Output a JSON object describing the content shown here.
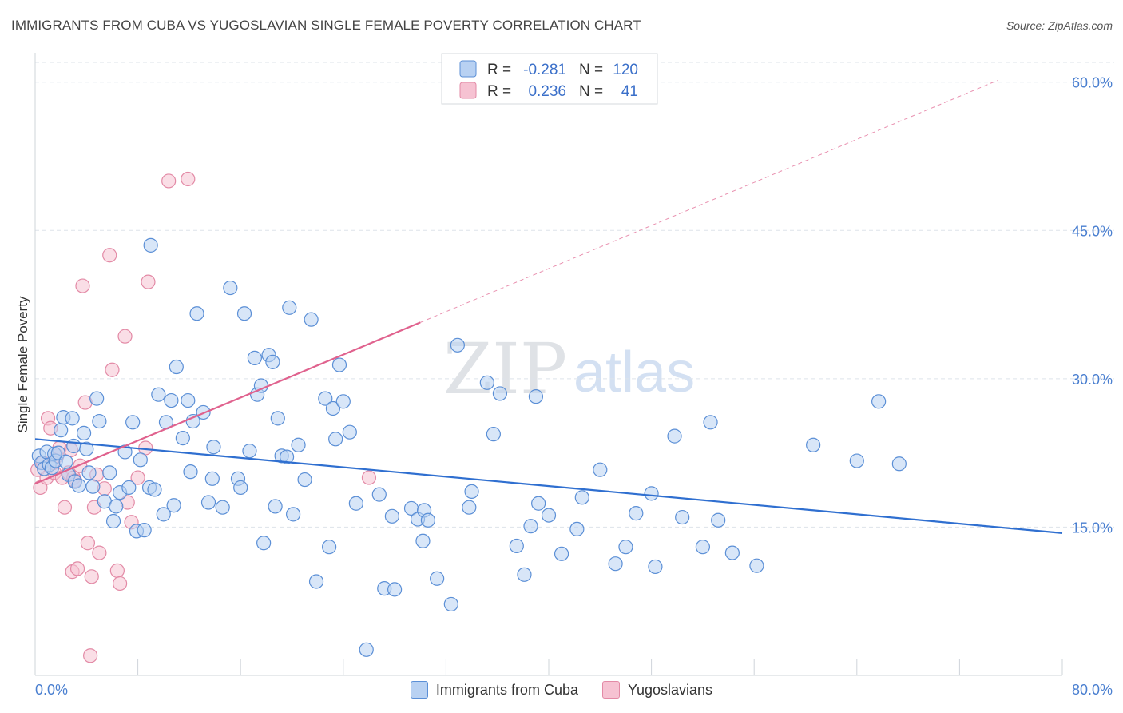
{
  "header": {
    "title": "IMMIGRANTS FROM CUBA VS YUGOSLAVIAN SINGLE FEMALE POVERTY CORRELATION CHART",
    "source": "Source: ZipAtlas.com"
  },
  "watermark": {
    "zip": "ZIP",
    "atlas": "atlas"
  },
  "colors": {
    "blue_fill": "#b8d1f2",
    "blue_stroke": "#5b8fd6",
    "blue_line": "#2f6fd0",
    "pink_fill": "#f6c2d2",
    "pink_stroke": "#e38aa6",
    "pink_line": "#e0628e",
    "tick_text": "#4a7fd0",
    "grid": "#dde3ea"
  },
  "legend": {
    "rows": [
      {
        "r_label": "R =",
        "r_value": "-0.281",
        "n_label": "N =",
        "n_value": "120"
      },
      {
        "r_label": "R =",
        "r_value": "0.236",
        "n_label": "N =",
        "n_value": "41"
      }
    ]
  },
  "chart_data": {
    "type": "scatter",
    "title": "IMMIGRANTS FROM CUBA VS YUGOSLAVIAN SINGLE FEMALE POVERTY CORRELATION CHART",
    "xlabel": "",
    "ylabel": "Single Female Poverty",
    "xlim": [
      0,
      80
    ],
    "ylim": [
      0,
      62
    ],
    "x_tick_labels": [
      "0.0%",
      "80.0%"
    ],
    "y_ticks": [
      15,
      30,
      45,
      60
    ],
    "y_tick_labels": [
      "15.0%",
      "30.0%",
      "45.0%",
      "60.0%"
    ],
    "grid": true,
    "legend_position": "top-center",
    "series": [
      {
        "name": "Immigrants from Cuba",
        "color": "#b8d1f2",
        "R": -0.281,
        "N": 120,
        "trend": {
          "x": [
            0,
            80
          ],
          "y": [
            23.9,
            14.4
          ]
        },
        "points": [
          [
            0.3,
            22.2
          ],
          [
            0.5,
            21.5
          ],
          [
            0.7,
            20.9
          ],
          [
            0.9,
            22.6
          ],
          [
            1.1,
            21.3
          ],
          [
            1.3,
            21.0
          ],
          [
            1.5,
            22.4
          ],
          [
            1.6,
            21.7
          ],
          [
            1.8,
            22.5
          ],
          [
            2.0,
            24.8
          ],
          [
            2.2,
            26.1
          ],
          [
            2.4,
            21.6
          ],
          [
            2.6,
            20.3
          ],
          [
            2.9,
            26.0
          ],
          [
            3.0,
            23.2
          ],
          [
            3.1,
            19.6
          ],
          [
            3.4,
            19.2
          ],
          [
            3.8,
            24.5
          ],
          [
            4.0,
            22.9
          ],
          [
            4.2,
            20.5
          ],
          [
            4.5,
            19.1
          ],
          [
            4.8,
            28.0
          ],
          [
            5.0,
            25.7
          ],
          [
            5.4,
            17.6
          ],
          [
            5.8,
            20.5
          ],
          [
            6.1,
            15.6
          ],
          [
            6.3,
            17.1
          ],
          [
            6.6,
            18.5
          ],
          [
            7.0,
            22.6
          ],
          [
            7.3,
            19.0
          ],
          [
            7.6,
            25.6
          ],
          [
            7.9,
            14.6
          ],
          [
            8.2,
            21.8
          ],
          [
            8.5,
            14.7
          ],
          [
            8.9,
            19.0
          ],
          [
            9.0,
            43.5
          ],
          [
            9.3,
            18.8
          ],
          [
            9.6,
            28.4
          ],
          [
            10.0,
            16.3
          ],
          [
            10.2,
            25.6
          ],
          [
            10.6,
            27.8
          ],
          [
            10.8,
            17.2
          ],
          [
            11.0,
            31.2
          ],
          [
            11.5,
            24.0
          ],
          [
            11.9,
            27.8
          ],
          [
            12.1,
            20.6
          ],
          [
            12.3,
            25.7
          ],
          [
            12.6,
            36.6
          ],
          [
            13.1,
            26.6
          ],
          [
            13.5,
            17.5
          ],
          [
            13.8,
            19.9
          ],
          [
            13.9,
            23.1
          ],
          [
            14.6,
            17.0
          ],
          [
            15.2,
            39.2
          ],
          [
            15.8,
            19.9
          ],
          [
            16.0,
            19.0
          ],
          [
            16.3,
            36.6
          ],
          [
            16.7,
            22.7
          ],
          [
            17.1,
            32.1
          ],
          [
            17.3,
            28.4
          ],
          [
            17.6,
            29.3
          ],
          [
            17.8,
            13.4
          ],
          [
            18.2,
            32.4
          ],
          [
            18.5,
            31.7
          ],
          [
            18.7,
            17.1
          ],
          [
            18.9,
            26.0
          ],
          [
            19.2,
            22.2
          ],
          [
            19.6,
            22.1
          ],
          [
            19.8,
            37.2
          ],
          [
            20.1,
            16.3
          ],
          [
            20.5,
            23.3
          ],
          [
            21.0,
            19.8
          ],
          [
            21.5,
            36.0
          ],
          [
            21.9,
            9.5
          ],
          [
            22.6,
            28.0
          ],
          [
            22.9,
            13.0
          ],
          [
            23.2,
            27.0
          ],
          [
            23.4,
            23.9
          ],
          [
            23.7,
            31.4
          ],
          [
            24.0,
            27.7
          ],
          [
            24.5,
            24.6
          ],
          [
            25.0,
            17.4
          ],
          [
            25.8,
            2.6
          ],
          [
            26.8,
            18.3
          ],
          [
            27.2,
            8.8
          ],
          [
            27.8,
            16.1
          ],
          [
            28.0,
            8.7
          ],
          [
            29.3,
            16.9
          ],
          [
            29.8,
            15.8
          ],
          [
            30.2,
            13.6
          ],
          [
            30.3,
            16.7
          ],
          [
            30.6,
            15.7
          ],
          [
            31.3,
            9.8
          ],
          [
            32.4,
            7.2
          ],
          [
            32.9,
            33.4
          ],
          [
            33.8,
            17.0
          ],
          [
            34.0,
            18.6
          ],
          [
            35.2,
            29.6
          ],
          [
            35.7,
            24.4
          ],
          [
            36.2,
            28.5
          ],
          [
            37.5,
            13.1
          ],
          [
            38.1,
            10.2
          ],
          [
            38.6,
            15.1
          ],
          [
            39.0,
            28.2
          ],
          [
            39.2,
            17.4
          ],
          [
            40.0,
            16.2
          ],
          [
            41.0,
            12.3
          ],
          [
            42.2,
            14.8
          ],
          [
            42.6,
            18.0
          ],
          [
            44.0,
            20.8
          ],
          [
            45.2,
            11.3
          ],
          [
            46.0,
            13.0
          ],
          [
            46.8,
            16.4
          ],
          [
            48.0,
            18.4
          ],
          [
            48.3,
            11.0
          ],
          [
            49.8,
            24.2
          ],
          [
            50.4,
            16.0
          ],
          [
            52.0,
            13.0
          ],
          [
            52.6,
            25.6
          ],
          [
            53.2,
            15.7
          ],
          [
            54.3,
            12.4
          ],
          [
            56.2,
            11.1
          ],
          [
            60.6,
            23.3
          ],
          [
            64.0,
            21.7
          ],
          [
            65.7,
            27.7
          ],
          [
            67.3,
            21.4
          ]
        ]
      },
      {
        "name": "Yugoslavians",
        "color": "#f6c2d2",
        "R": 0.236,
        "N": 41,
        "trend": {
          "x": [
            0,
            30
          ],
          "y": [
            19.4,
            35.7
          ]
        },
        "trend_extension": {
          "x": [
            30,
            75
          ],
          "y": [
            35.7,
            60.2
          ]
        },
        "points": [
          [
            0.2,
            20.8
          ],
          [
            0.4,
            19.0
          ],
          [
            0.6,
            21.5
          ],
          [
            0.9,
            20.0
          ],
          [
            1.0,
            26.0
          ],
          [
            1.2,
            25.0
          ],
          [
            1.5,
            20.5
          ],
          [
            1.7,
            22.2
          ],
          [
            1.9,
            23.0
          ],
          [
            2.1,
            20.0
          ],
          [
            2.3,
            17.0
          ],
          [
            2.6,
            20.5
          ],
          [
            2.8,
            22.8
          ],
          [
            2.9,
            10.5
          ],
          [
            3.0,
            20.0
          ],
          [
            3.1,
            19.7
          ],
          [
            3.3,
            10.8
          ],
          [
            3.5,
            21.2
          ],
          [
            3.7,
            39.4
          ],
          [
            3.9,
            27.6
          ],
          [
            4.1,
            13.4
          ],
          [
            4.4,
            10.0
          ],
          [
            4.6,
            17.0
          ],
          [
            4.8,
            20.3
          ],
          [
            5.0,
            12.4
          ],
          [
            5.4,
            18.9
          ],
          [
            5.8,
            42.5
          ],
          [
            6.0,
            30.9
          ],
          [
            6.4,
            10.6
          ],
          [
            6.6,
            9.3
          ],
          [
            7.0,
            34.3
          ],
          [
            7.2,
            17.5
          ],
          [
            7.5,
            15.5
          ],
          [
            8.0,
            20.0
          ],
          [
            8.6,
            23.0
          ],
          [
            8.8,
            39.8
          ],
          [
            10.4,
            50.0
          ],
          [
            11.9,
            50.2
          ],
          [
            26.0,
            20.0
          ],
          [
            4.3,
            2.0
          ],
          [
            1.4,
            21.5
          ]
        ]
      }
    ]
  },
  "bottom_legend": {
    "items": [
      {
        "label": "Immigrants from Cuba"
      },
      {
        "label": "Yugoslavians"
      }
    ]
  }
}
